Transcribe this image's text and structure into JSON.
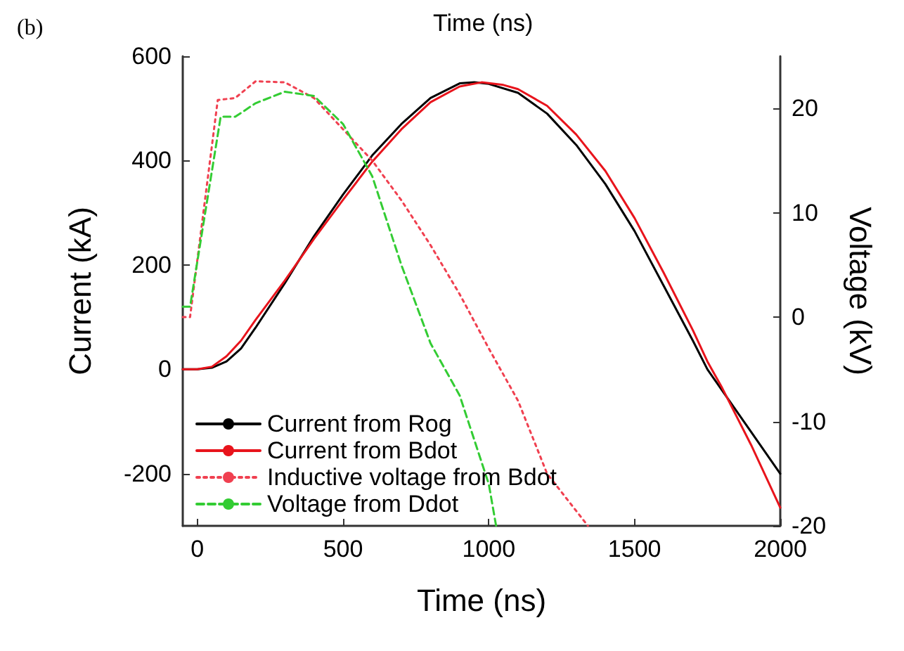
{
  "chart_data": {
    "type": "line",
    "xlabel": "Time (ns)",
    "ylabel": "Current (kA)",
    "y2label": "Voltage (kV)",
    "annotations": [
      "(b)",
      "Time (ns)"
    ],
    "xlim": [
      -50,
      2000
    ],
    "xticks": [
      0,
      500,
      1000,
      1500,
      2000
    ],
    "ylim": [
      -300,
      600
    ],
    "yticks": [
      -200,
      0,
      200,
      400,
      600
    ],
    "y2lim": [
      -20,
      25
    ],
    "y2ticks": [
      -20,
      -10,
      0,
      10,
      20
    ],
    "grid": false,
    "legend": "bottom left",
    "marker": "none",
    "series": [
      {
        "name": "Current from Rog",
        "color": "#000000",
        "line_style": "solid",
        "x": [
          -50,
          0,
          50,
          100,
          150,
          200,
          300,
          400,
          500,
          600,
          700,
          800,
          900,
          950,
          1000,
          1100,
          1200,
          1300,
          1400,
          1500,
          1600,
          1700,
          1750,
          1800,
          1900,
          2000
        ],
        "values": [
          0,
          0,
          3,
          15,
          40,
          80,
          165,
          255,
          335,
          410,
          470,
          520,
          548,
          550,
          547,
          530,
          490,
          430,
          355,
          265,
          160,
          55,
          0,
          -40,
          -120,
          -200
        ]
      },
      {
        "name": "Current from Bdot",
        "color": "#e8141c",
        "line_style": "solid",
        "x": [
          -50,
          0,
          50,
          100,
          150,
          200,
          300,
          400,
          500,
          600,
          700,
          800,
          900,
          975,
          1050,
          1100,
          1200,
          1300,
          1400,
          1500,
          1600,
          1700,
          1750,
          1800,
          1900,
          2000
        ],
        "values": [
          0,
          0,
          5,
          25,
          55,
          95,
          170,
          250,
          325,
          398,
          460,
          512,
          542,
          550,
          545,
          537,
          505,
          450,
          380,
          290,
          185,
          75,
          15,
          -35,
          -145,
          -265
        ]
      },
      {
        "name": "Inductive voltage from Bdot",
        "color": "#f04050",
        "line_style": "dotted",
        "axis": "y2",
        "x": [
          -50,
          -25,
          70,
          130,
          200,
          300,
          400,
          500,
          600,
          700,
          800,
          900,
          1000,
          1100,
          1200,
          1340
        ],
        "values": [
          0,
          0,
          20.8,
          21,
          22.6,
          22.5,
          21,
          18,
          15,
          11.2,
          6.9,
          2.2,
          -3,
          -8,
          -15,
          -20
        ]
      },
      {
        "name": "Voltage from Ddot",
        "color": "#33cc33",
        "line_style": "dashed",
        "axis": "y2",
        "x": [
          -50,
          -25,
          80,
          130,
          200,
          300,
          400,
          500,
          600,
          700,
          800,
          900,
          1000,
          1025
        ],
        "values": [
          1,
          1,
          19.2,
          19.2,
          20.5,
          21.6,
          21.2,
          18.5,
          13.5,
          5,
          -2.5,
          -7.5,
          -16,
          -20
        ]
      }
    ]
  }
}
